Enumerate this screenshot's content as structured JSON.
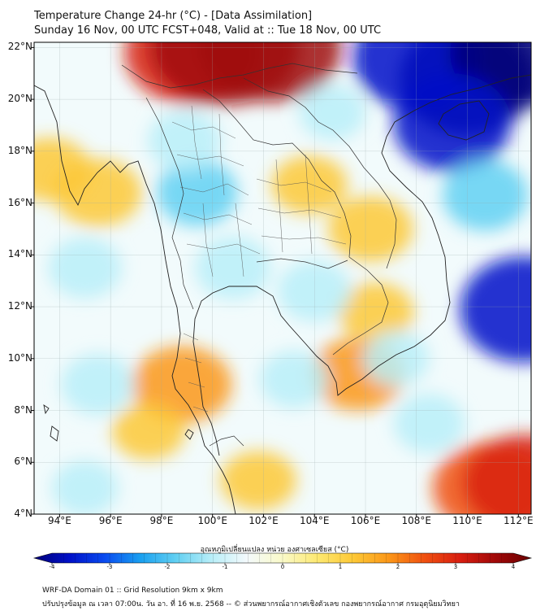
{
  "header": {
    "title_line1": "Temperature Change 24-hr (°C) - [Data Assimilation]",
    "title_line2": "Sunday 16 Nov, 00 UTC FCST+048, Valid at :: Tue 18 Nov, 00 UTC"
  },
  "map": {
    "lat_labels": [
      "22°N",
      "20°N",
      "18°N",
      "16°N",
      "14°N",
      "12°N",
      "10°N",
      "8°N",
      "6°N",
      "4°N"
    ],
    "lon_labels": [
      "94°E",
      "96°E",
      "98°E",
      "100°E",
      "102°E",
      "104°E",
      "106°E",
      "108°E",
      "110°E",
      "112°E"
    ],
    "lat_values": [
      22,
      20,
      18,
      16,
      14,
      12,
      10,
      8,
      6,
      4
    ],
    "lon_values": [
      94,
      96,
      98,
      100,
      102,
      104,
      106,
      108,
      110,
      112
    ],
    "lat_range": [
      4,
      22.2
    ],
    "lon_range": [
      93,
      112.5
    ],
    "gridlines": true,
    "field": "24-hr temperature change (°C)",
    "hot_spots": [
      {
        "lon": 99.2,
        "lat": 21.8,
        "value": 3.0
      },
      {
        "lon": 100.5,
        "lat": 22.0,
        "value": 3.5
      },
      {
        "lon": 102.3,
        "lat": 22.0,
        "value": 3.2
      },
      {
        "lon": 95.5,
        "lat": 16.4,
        "value": 1.4
      },
      {
        "lon": 93.6,
        "lat": 17.3,
        "value": 1.2
      },
      {
        "lon": 98.8,
        "lat": 9.0,
        "value": 1.8
      },
      {
        "lon": 105.7,
        "lat": 9.4,
        "value": 1.6
      },
      {
        "lon": 106.4,
        "lat": 11.8,
        "value": 1.0
      },
      {
        "lon": 111.0,
        "lat": 5.0,
        "value": 2.5
      },
      {
        "lon": 112.3,
        "lat": 5.2,
        "value": 2.7
      },
      {
        "lon": 103.8,
        "lat": 16.7,
        "value": 1.0
      },
      {
        "lon": 106.2,
        "lat": 15.0,
        "value": 1.3
      },
      {
        "lon": 101.8,
        "lat": 5.3,
        "value": 1.0
      },
      {
        "lon": 97.5,
        "lat": 7.2,
        "value": 0.9
      }
    ],
    "cold_spots": [
      {
        "lon": 110.0,
        "lat": 20.8,
        "value": -4.0
      },
      {
        "lon": 108.0,
        "lat": 21.6,
        "value": -3.6
      },
      {
        "lon": 111.9,
        "lat": 21.8,
        "value": -3.8
      },
      {
        "lon": 109.4,
        "lat": 19.1,
        "value": -3.2
      },
      {
        "lon": 112.2,
        "lat": 11.9,
        "value": -3.6
      },
      {
        "lon": 110.7,
        "lat": 16.3,
        "value": -1.8
      },
      {
        "lon": 99.4,
        "lat": 16.4,
        "value": -1.6
      },
      {
        "lon": 100.8,
        "lat": 13.5,
        "value": -1.4
      },
      {
        "lon": 98.9,
        "lat": 18.4,
        "value": -1.3
      },
      {
        "lon": 104.0,
        "lat": 12.6,
        "value": -1.3
      },
      {
        "lon": 95.0,
        "lat": 13.5,
        "value": -1.3
      },
      {
        "lon": 95.5,
        "lat": 9.0,
        "value": -1.3
      },
      {
        "lon": 108.5,
        "lat": 7.5,
        "value": -1.2
      },
      {
        "lon": 103.2,
        "lat": 9.2,
        "value": -1.1
      },
      {
        "lon": 95.0,
        "lat": 5.0,
        "value": -1.0
      },
      {
        "lon": 104.7,
        "lat": 19.5,
        "value": -1.0
      },
      {
        "lon": 107.2,
        "lat": 10.0,
        "value": -1.0
      }
    ]
  },
  "colorbar": {
    "title": "อุณหภูมิเปลี่ยนแปลง หน่วย องศาเซลเซียส (°C)",
    "tick_labels": [
      "-4",
      "-3",
      "-2",
      "-1",
      "0",
      "1",
      "2",
      "3",
      "4"
    ],
    "tick_values": [
      -4,
      -3,
      -2,
      -1,
      0,
      1,
      2,
      3,
      4
    ],
    "range": [
      -4,
      4
    ],
    "colors": [
      "#00007a",
      "#0010c8",
      "#0a4cf0",
      "#1aa0f0",
      "#62d0f2",
      "#b8eef8",
      "#f4fafc",
      "#fafac8",
      "#fde870",
      "#fdc836",
      "#fb9618",
      "#f05010",
      "#d81e10",
      "#a00808",
      "#6a0000"
    ]
  },
  "footer": {
    "line1": "WRF-DA Domain 01 :: Grid Resolution 9km x 9km",
    "line2": "ปรับปรุงข้อมูล ณ เวลา 07:00น. วัน อา. ที่ 16 พ.ย. 2568 -- © ส่วนพยากรณ์อากาศเชิงตัวเลข กองพยากรณ์อากาศ กรมอุตุนิยมวิทยา"
  }
}
